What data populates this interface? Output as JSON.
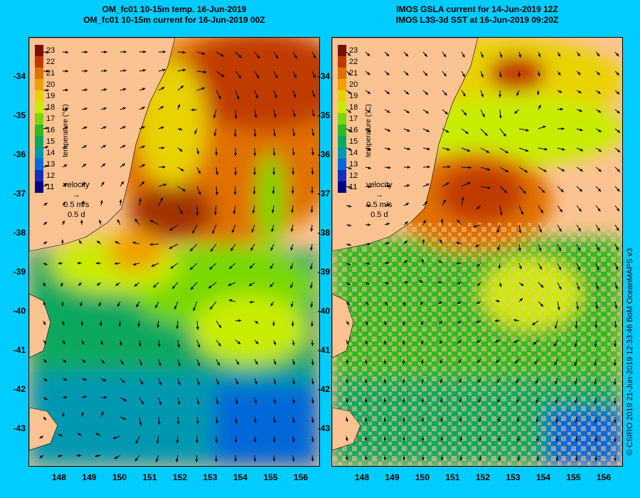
{
  "left_title_line1": "OM_fc01 10-15m temp. 16-Jun-2019",
  "left_title_line2": "OM_fc01 10-15m current for 16-Jun-2019 00Z",
  "right_title_line1": "IMOS GSLA current for 14-Jun-2019 12Z",
  "right_title_line2": "IMOS L3S-3d SST at 16-Jun-2019 09:20Z",
  "credit": "© CSIRO 2019   21-Jun-2019 12:33:46 BoM OceanMAPS v3",
  "colorbar": {
    "label": "temperature (°C)",
    "ticks": [
      "23",
      "22",
      "21",
      "20",
      "19",
      "18",
      "17",
      "16",
      "15",
      "14",
      "13",
      "12",
      "11"
    ],
    "colors": [
      "#7a1000",
      "#c03a00",
      "#e07000",
      "#f0a000",
      "#e8d200",
      "#c8ec00",
      "#78d800",
      "#30b820",
      "#10a860",
      "#0098b0",
      "#0068d8",
      "#1030c0",
      "#000080"
    ]
  },
  "velocity_legend": {
    "label": "velocity",
    "speed": "0.5 m/s",
    "time": "0.5 d"
  },
  "yticks": [
    "-34",
    "-35",
    "-36",
    "-37",
    "-38",
    "-39",
    "-40",
    "-41",
    "-42",
    "-43"
  ],
  "xticks": [
    "148",
    "149",
    "150",
    "151",
    "152",
    "153",
    "154",
    "155",
    "156"
  ],
  "land_color": "#fbc391",
  "background_color": "#00ccff"
}
